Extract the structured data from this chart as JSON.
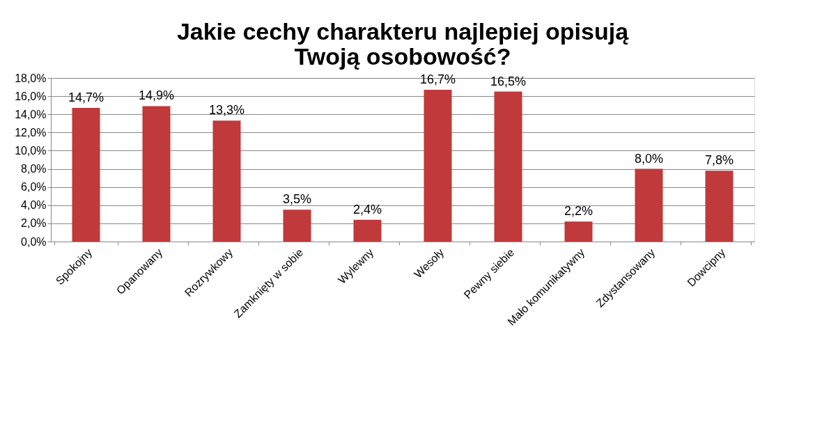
{
  "chart_data": {
    "type": "bar",
    "title": "Jakie cechy charakteru najlepiej opisują Twoją osobowość?",
    "categories": [
      "Spokojny",
      "Opanowany",
      "Rozrywkowy",
      "Zamknięty w sobie",
      "Wylewny",
      "Wesoły",
      "Pewny siebie",
      "Mało komunikatywny",
      "Zdystansowany",
      "Dowcipny"
    ],
    "values": [
      14.7,
      14.9,
      13.3,
      3.5,
      2.4,
      16.7,
      16.5,
      2.2,
      8.0,
      7.8
    ],
    "value_labels": [
      "14,7%",
      "14,9%",
      "13,3%",
      "3,5%",
      "2,4%",
      "16,7%",
      "16,5%",
      "2,2%",
      "8,0%",
      "7,8%"
    ],
    "color": "#c0393b",
    "ylim": [
      0,
      18
    ],
    "yticks": [
      {
        "value": 0,
        "label": "0,0%"
      },
      {
        "value": 2,
        "label": "2,0%"
      },
      {
        "value": 4,
        "label": "4,0%"
      },
      {
        "value": 6,
        "label": "6,0%"
      },
      {
        "value": 8,
        "label": "8,0%"
      },
      {
        "value": 10,
        "label": "10,0%"
      },
      {
        "value": 12,
        "label": "12,0%"
      },
      {
        "value": 14,
        "label": "14,0%"
      },
      {
        "value": 16,
        "label": "16,0%"
      },
      {
        "value": 18,
        "label": "18,0%"
      }
    ],
    "grid": "y"
  }
}
